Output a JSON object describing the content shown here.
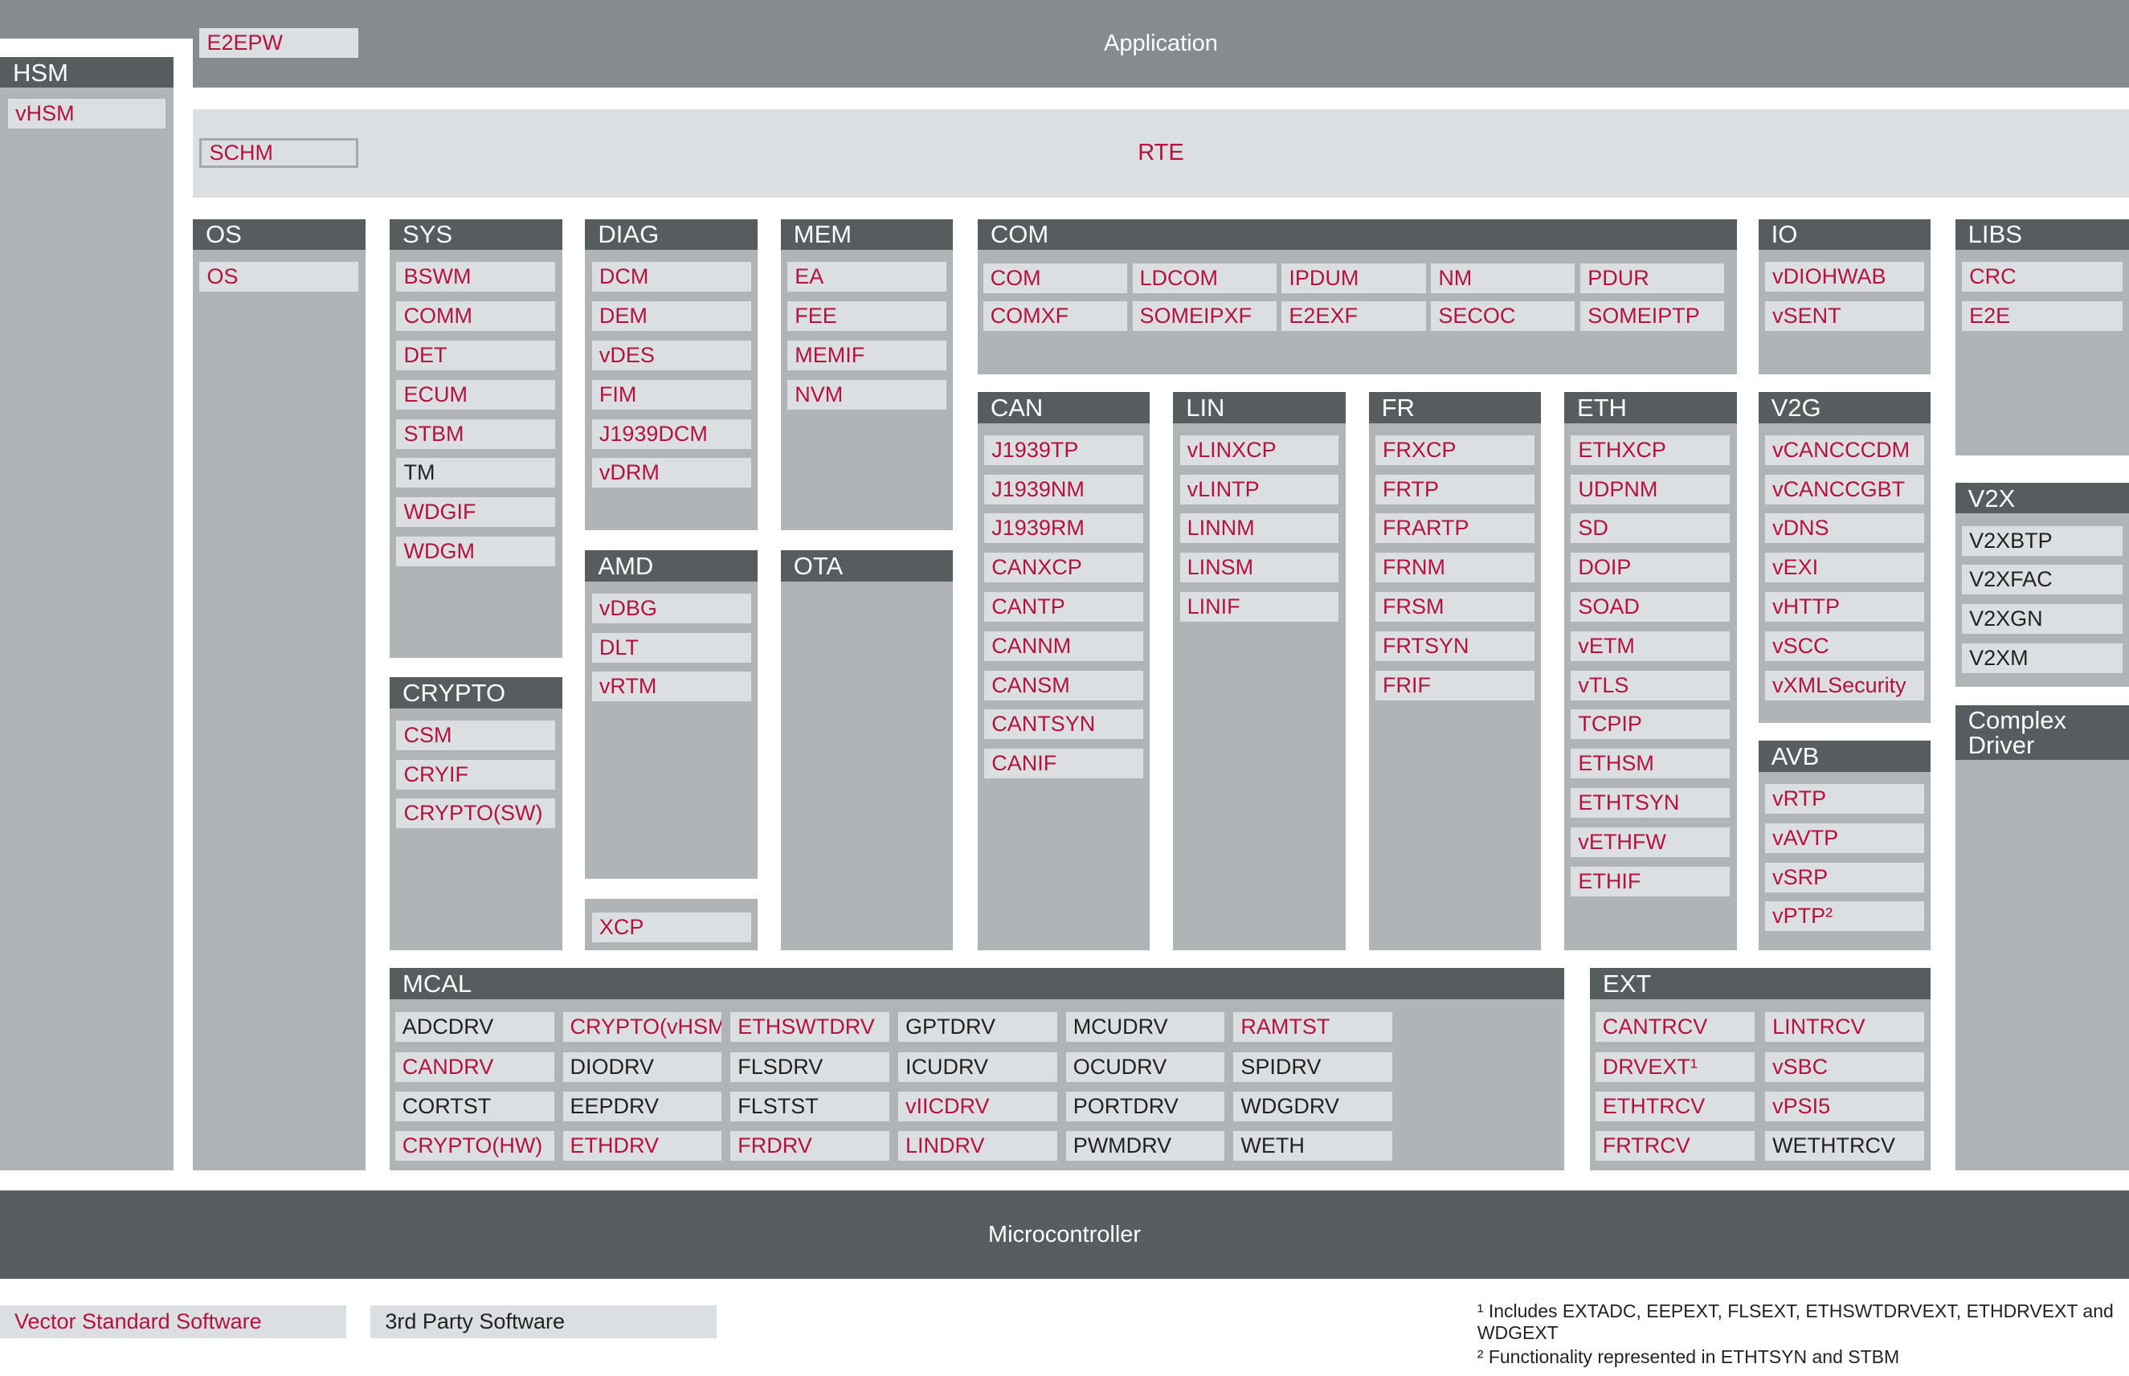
{
  "application": {
    "title": "Application",
    "item": {
      "label": "E2EPW",
      "color": "#b5123e"
    }
  },
  "rte": {
    "title": "RTE",
    "item": {
      "label": "SCHM",
      "color": "#b5123e"
    }
  },
  "hsm": {
    "title": "HSM",
    "items": [
      {
        "label": "vHSM",
        "color": "#b5123e"
      }
    ]
  },
  "blocks": [
    {
      "title": "OS",
      "items": [
        {
          "label": "OS",
          "color": "#b5123e"
        }
      ]
    },
    {
      "title": "SYS",
      "items": [
        {
          "label": "BSWM",
          "color": "#b5123e"
        },
        {
          "label": "COMM",
          "color": "#b5123e"
        },
        {
          "label": "DET",
          "color": "#b5123e"
        },
        {
          "label": "ECUM",
          "color": "#b5123e"
        },
        {
          "label": "STBM",
          "color": "#b5123e"
        },
        {
          "label": "TM",
          "color": "#222222"
        },
        {
          "label": "WDGIF",
          "color": "#b5123e"
        },
        {
          "label": "WDGM",
          "color": "#b5123e"
        }
      ]
    },
    {
      "title": "CRYPTO",
      "items": [
        {
          "label": "CSM",
          "color": "#b5123e"
        },
        {
          "label": "CRYIF",
          "color": "#b5123e"
        },
        {
          "label": "CRYPTO(SW)",
          "color": "#b5123e"
        }
      ]
    },
    {
      "title": "DIAG",
      "items": [
        {
          "label": "DCM",
          "color": "#b5123e"
        },
        {
          "label": "DEM",
          "color": "#b5123e"
        },
        {
          "label": "vDES",
          "color": "#b5123e"
        },
        {
          "label": "FIM",
          "color": "#b5123e"
        },
        {
          "label": "J1939DCM",
          "color": "#b5123e"
        },
        {
          "label": "vDRM",
          "color": "#b5123e"
        }
      ]
    },
    {
      "title": "AMD",
      "items": [
        {
          "label": "vDBG",
          "color": "#b5123e"
        },
        {
          "label": "DLT",
          "color": "#b5123e"
        },
        {
          "label": "vRTM",
          "color": "#b5123e"
        }
      ]
    },
    {
      "items": [
        {
          "label": "XCP",
          "color": "#b5123e"
        }
      ]
    },
    {
      "title": "MEM",
      "items": [
        {
          "label": "EA",
          "color": "#b5123e"
        },
        {
          "label": "FEE",
          "color": "#b5123e"
        },
        {
          "label": "MEMIF",
          "color": "#b5123e"
        },
        {
          "label": "NVM",
          "color": "#b5123e"
        }
      ]
    },
    {
      "title": "OTA",
      "items": []
    },
    {
      "title": "COM",
      "items": [
        {
          "label": "COM",
          "color": "#b5123e"
        },
        {
          "label": "LDCOM",
          "color": "#b5123e"
        },
        {
          "label": "IPDUM",
          "color": "#b5123e"
        },
        {
          "label": "NM",
          "color": "#b5123e"
        },
        {
          "label": "PDUR",
          "color": "#b5123e"
        },
        {
          "label": "COMXF",
          "color": "#b5123e"
        },
        {
          "label": "SOMEIPXF",
          "color": "#b5123e"
        },
        {
          "label": "E2EXF",
          "color": "#b5123e"
        },
        {
          "label": "SECOC",
          "color": "#b5123e"
        },
        {
          "label": "SOMEIPTP",
          "color": "#b5123e"
        }
      ]
    },
    {
      "title": "CAN",
      "items": [
        {
          "label": "J1939TP",
          "color": "#b5123e"
        },
        {
          "label": "J1939NM",
          "color": "#b5123e"
        },
        {
          "label": "J1939RM",
          "color": "#b5123e"
        },
        {
          "label": "CANXCP",
          "color": "#b5123e"
        },
        {
          "label": "CANTP",
          "color": "#b5123e"
        },
        {
          "label": "CANNM",
          "color": "#b5123e"
        },
        {
          "label": "CANSM",
          "color": "#b5123e"
        },
        {
          "label": "CANTSYN",
          "color": "#b5123e"
        },
        {
          "label": "CANIF",
          "color": "#b5123e"
        }
      ]
    },
    {
      "title": "LIN",
      "items": [
        {
          "label": "vLINXCP",
          "color": "#b5123e"
        },
        {
          "label": "vLINTP",
          "color": "#b5123e"
        },
        {
          "label": "LINNM",
          "color": "#b5123e"
        },
        {
          "label": "LINSM",
          "color": "#b5123e"
        },
        {
          "label": "LINIF",
          "color": "#b5123e"
        }
      ]
    },
    {
      "title": "FR",
      "items": [
        {
          "label": "FRXCP",
          "color": "#b5123e"
        },
        {
          "label": "FRTP",
          "color": "#b5123e"
        },
        {
          "label": "FRARTP",
          "color": "#b5123e"
        },
        {
          "label": "FRNM",
          "color": "#b5123e"
        },
        {
          "label": "FRSM",
          "color": "#b5123e"
        },
        {
          "label": "FRTSYN",
          "color": "#b5123e"
        },
        {
          "label": "FRIF",
          "color": "#b5123e"
        }
      ]
    },
    {
      "title": "ETH",
      "items": [
        {
          "label": "ETHXCP",
          "color": "#b5123e"
        },
        {
          "label": "UDPNM",
          "color": "#b5123e"
        },
        {
          "label": "SD",
          "color": "#b5123e"
        },
        {
          "label": "DOIP",
          "color": "#b5123e"
        },
        {
          "label": "SOAD",
          "color": "#b5123e"
        },
        {
          "label": "vETM",
          "color": "#b5123e"
        },
        {
          "label": "vTLS",
          "color": "#b5123e"
        },
        {
          "label": "TCPIP",
          "color": "#b5123e"
        },
        {
          "label": "ETHSM",
          "color": "#b5123e"
        },
        {
          "label": "ETHTSYN",
          "color": "#b5123e"
        },
        {
          "label": "vETHFW",
          "color": "#b5123e"
        },
        {
          "label": "ETHIF",
          "color": "#b5123e"
        }
      ]
    },
    {
      "title": "IO",
      "items": [
        {
          "label": "vDIOHWAB",
          "color": "#b5123e"
        },
        {
          "label": "vSENT",
          "color": "#b5123e"
        }
      ]
    },
    {
      "title": "V2G",
      "items": [
        {
          "label": "vCANCCCDM",
          "color": "#b5123e"
        },
        {
          "label": "vCANCCGBT",
          "color": "#b5123e"
        },
        {
          "label": "vDNS",
          "color": "#b5123e"
        },
        {
          "label": "vEXI",
          "color": "#b5123e"
        },
        {
          "label": "vHTTP",
          "color": "#b5123e"
        },
        {
          "label": "vSCC",
          "color": "#b5123e"
        },
        {
          "label": "vXMLSecurity",
          "color": "#b5123e"
        }
      ]
    },
    {
      "title": "AVB",
      "items": [
        {
          "label": "vRTP",
          "color": "#b5123e"
        },
        {
          "label": "vAVTP",
          "color": "#b5123e"
        },
        {
          "label": "vSRP",
          "color": "#b5123e"
        },
        {
          "label": "vPTP²",
          "color": "#b5123e"
        }
      ]
    },
    {
      "title": "LIBS",
      "items": [
        {
          "label": "CRC",
          "color": "#b5123e"
        },
        {
          "label": "E2E",
          "color": "#b5123e"
        }
      ]
    },
    {
      "title": "V2X",
      "items": [
        {
          "label": "V2XBTP",
          "color": "#222222"
        },
        {
          "label": "V2XFAC",
          "color": "#222222"
        },
        {
          "label": "V2XGN",
          "color": "#222222"
        },
        {
          "label": "V2XM",
          "color": "#222222"
        }
      ]
    },
    {
      "title": "Complex Driver",
      "items": []
    },
    {
      "title": "MCAL",
      "items": [
        {
          "label": "ADCDRV",
          "color": "#222222"
        },
        {
          "label": "CANDRV",
          "color": "#b5123e"
        },
        {
          "label": "CORTST",
          "color": "#222222"
        },
        {
          "label": "CRYPTO(HW)",
          "color": "#b5123e"
        },
        {
          "label": "CRYPTO(vHSM)",
          "color": "#b5123e"
        },
        {
          "label": "DIODRV",
          "color": "#222222"
        },
        {
          "label": "EEPDRV",
          "color": "#222222"
        },
        {
          "label": "ETHDRV",
          "color": "#b5123e"
        },
        {
          "label": "ETHSWTDRV",
          "color": "#b5123e"
        },
        {
          "label": "FLSDRV",
          "color": "#222222"
        },
        {
          "label": "FLSTST",
          "color": "#222222"
        },
        {
          "label": "FRDRV",
          "color": "#b5123e"
        },
        {
          "label": "GPTDRV",
          "color": "#222222"
        },
        {
          "label": "ICUDRV",
          "color": "#222222"
        },
        {
          "label": "vIICDRV",
          "color": "#b5123e"
        },
        {
          "label": "LINDRV",
          "color": "#b5123e"
        },
        {
          "label": "MCUDRV",
          "color": "#222222"
        },
        {
          "label": "OCUDRV",
          "color": "#222222"
        },
        {
          "label": "PORTDRV",
          "color": "#222222"
        },
        {
          "label": "PWMDRV",
          "color": "#222222"
        },
        {
          "label": "RAMTST",
          "color": "#b5123e"
        },
        {
          "label": "SPIDRV",
          "color": "#222222"
        },
        {
          "label": "WDGDRV",
          "color": "#222222"
        },
        {
          "label": "WETH",
          "color": "#222222"
        }
      ]
    },
    {
      "title": "EXT",
      "items": [
        {
          "label": "CANTRCV",
          "color": "#b5123e"
        },
        {
          "label": "DRVEXT¹",
          "color": "#b5123e"
        },
        {
          "label": "ETHTRCV",
          "color": "#b5123e"
        },
        {
          "label": "FRTRCV",
          "color": "#b5123e"
        },
        {
          "label": "LINTRCV",
          "color": "#b5123e"
        },
        {
          "label": "vSBC",
          "color": "#b5123e"
        },
        {
          "label": "vPSI5",
          "color": "#b5123e"
        },
        {
          "label": "WETHTRCV",
          "color": "#222222"
        }
      ]
    }
  ],
  "microcontroller": "Microcontroller",
  "legend": [
    {
      "label": "Vector Standard Software",
      "color": "#b5123e"
    },
    {
      "label": "3rd Party Software",
      "color": "#222222"
    }
  ],
  "footnotes": [
    "¹ Includes EXTADC, EEPEXT, FLSEXT, ETHSWTDRVEXT, ETHDRVEXT and WDGEXT",
    "² Functionality represented in ETHTSYN and STBM"
  ]
}
